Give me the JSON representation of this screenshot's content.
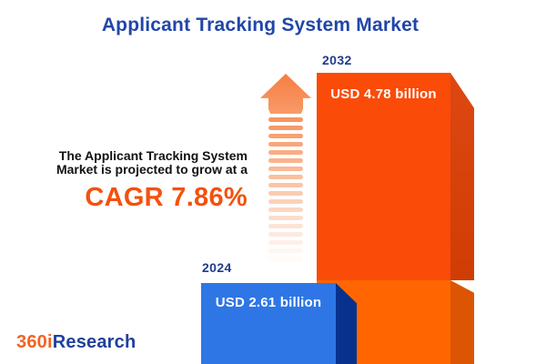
{
  "title": "Applicant Tracking System Market",
  "annotation": {
    "line1": "The Applicant Tracking System",
    "line2": "Market is projected to grow at a",
    "cagr": "CAGR 7.86%"
  },
  "bars": {
    "y2032": {
      "year": "2032",
      "value_label": "USD 4.78 billion"
    },
    "y2024": {
      "year": "2024",
      "value_label": "USD 2.61 billion"
    }
  },
  "logo": {
    "part1": "360i",
    "part2": "Research"
  },
  "colors": {
    "title_blue": "#2146a8",
    "year_label_blue": "#1f3d8e",
    "cagr_orange": "#f4510d",
    "bar_2032_front": "#fa4b08",
    "bar_2032_front_lower": "#ff6602",
    "bar_2032_side": "#d6420c",
    "bar_2024_front": "#2e76e6",
    "bar_2024_side": "#08318d",
    "arrow_orange": "#f68b52",
    "logo_orange": "#f26422",
    "logo_blue": "#21409a",
    "background": "#ffffff"
  },
  "chart_data": {
    "type": "bar",
    "title": "Applicant Tracking System Market",
    "categories": [
      "2024",
      "2032"
    ],
    "values": [
      2.61,
      4.78
    ],
    "unit": "USD billion",
    "value_labels": [
      "USD 2.61 billion",
      "USD 4.78 billion"
    ],
    "cagr_percent": 7.86,
    "annotation": "The Applicant Tracking System Market is projected to grow at a CAGR 7.86%",
    "series_colors": {
      "2024": "#2e76e6",
      "2032": "#fa4b08"
    },
    "bar_style": "3d-extruded",
    "grid": false,
    "axes_visible": false,
    "legend": false,
    "source_logo": "360iResearch"
  }
}
